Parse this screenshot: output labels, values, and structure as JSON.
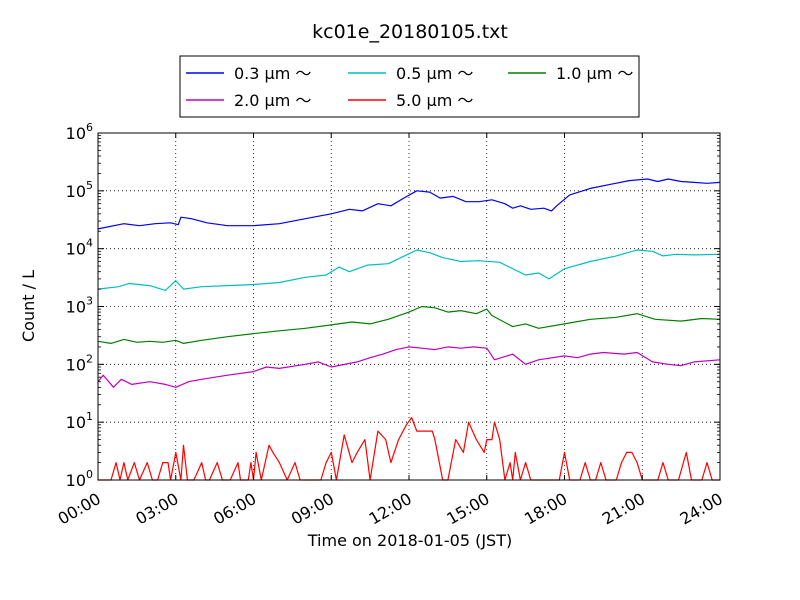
{
  "chart_data": {
    "type": "line",
    "title": "kc01e_20180105.txt",
    "xlabel": "Time on 2018-01-05 (JST)",
    "ylabel": "Count / L",
    "x_ticks": [
      "00:00",
      "03:00",
      "06:00",
      "09:00",
      "12:00",
      "15:00",
      "18:00",
      "21:00",
      "24:00"
    ],
    "y_scale": "log",
    "y_ticks": [
      {
        "base": "10",
        "exp": "0"
      },
      {
        "base": "10",
        "exp": "1"
      },
      {
        "base": "10",
        "exp": "2"
      },
      {
        "base": "10",
        "exp": "3"
      },
      {
        "base": "10",
        "exp": "4"
      },
      {
        "base": "10",
        "exp": "5"
      },
      {
        "base": "10",
        "exp": "6"
      }
    ],
    "xlim_hours": [
      0,
      24
    ],
    "ylim": [
      1,
      1000000
    ],
    "grid": true,
    "legend_position": "top-center",
    "series": [
      {
        "name": "0.3 μm ～",
        "color": "#0000ff",
        "points": [
          [
            0,
            22000
          ],
          [
            1,
            27000
          ],
          [
            1.6,
            25000
          ],
          [
            2.2,
            27000
          ],
          [
            2.8,
            28000
          ],
          [
            3.1,
            26000
          ],
          [
            3.2,
            35000
          ],
          [
            3.6,
            33000
          ],
          [
            4.2,
            28000
          ],
          [
            5,
            25000
          ],
          [
            6,
            25000
          ],
          [
            7,
            27000
          ],
          [
            8,
            33000
          ],
          [
            9,
            40000
          ],
          [
            9.7,
            48000
          ],
          [
            10.2,
            45000
          ],
          [
            10.8,
            60000
          ],
          [
            11.3,
            55000
          ],
          [
            11.8,
            75000
          ],
          [
            12.3,
            100000
          ],
          [
            12.8,
            95000
          ],
          [
            13.2,
            75000
          ],
          [
            13.7,
            80000
          ],
          [
            14.2,
            65000
          ],
          [
            14.7,
            65000
          ],
          [
            15.2,
            70000
          ],
          [
            15.7,
            60000
          ],
          [
            16,
            50000
          ],
          [
            16.3,
            55000
          ],
          [
            16.7,
            48000
          ],
          [
            17.2,
            50000
          ],
          [
            17.5,
            45000
          ],
          [
            17.7,
            55000
          ],
          [
            18.2,
            85000
          ],
          [
            19,
            110000
          ],
          [
            19.8,
            130000
          ],
          [
            20.5,
            150000
          ],
          [
            21.2,
            160000
          ],
          [
            21.6,
            145000
          ],
          [
            22,
            160000
          ],
          [
            22.5,
            145000
          ],
          [
            23,
            140000
          ],
          [
            23.5,
            135000
          ],
          [
            24,
            140000
          ]
        ]
      },
      {
        "name": "0.5 μm ～",
        "color": "#00bfbf",
        "points": [
          [
            0,
            2000
          ],
          [
            0.8,
            2200
          ],
          [
            1.2,
            2500
          ],
          [
            2,
            2300
          ],
          [
            2.6,
            1900
          ],
          [
            3,
            2800
          ],
          [
            3.3,
            2000
          ],
          [
            4,
            2200
          ],
          [
            5,
            2300
          ],
          [
            6,
            2400
          ],
          [
            7,
            2600
          ],
          [
            8,
            3200
          ],
          [
            8.8,
            3500
          ],
          [
            9.3,
            4800
          ],
          [
            9.7,
            4000
          ],
          [
            10.4,
            5200
          ],
          [
            11.2,
            5500
          ],
          [
            12.3,
            9500
          ],
          [
            12.8,
            8500
          ],
          [
            13.3,
            7000
          ],
          [
            14,
            6000
          ],
          [
            14.7,
            6200
          ],
          [
            15.5,
            5800
          ],
          [
            16,
            4500
          ],
          [
            16.5,
            3500
          ],
          [
            17,
            3800
          ],
          [
            17.4,
            3000
          ],
          [
            18,
            4500
          ],
          [
            19,
            6000
          ],
          [
            20,
            7500
          ],
          [
            20.8,
            9500
          ],
          [
            21.4,
            9000
          ],
          [
            21.8,
            7500
          ],
          [
            22.3,
            8000
          ],
          [
            23,
            7800
          ],
          [
            24,
            8000
          ]
        ]
      },
      {
        "name": "1.0 μm ～",
        "color": "#008000",
        "points": [
          [
            0,
            250
          ],
          [
            0.5,
            230
          ],
          [
            1,
            270
          ],
          [
            1.5,
            240
          ],
          [
            2,
            250
          ],
          [
            2.5,
            240
          ],
          [
            3,
            260
          ],
          [
            3.3,
            230
          ],
          [
            4,
            260
          ],
          [
            5,
            300
          ],
          [
            6,
            340
          ],
          [
            7,
            380
          ],
          [
            8,
            420
          ],
          [
            9,
            480
          ],
          [
            9.8,
            540
          ],
          [
            10.5,
            500
          ],
          [
            11.2,
            600
          ],
          [
            12,
            800
          ],
          [
            12.5,
            1000
          ],
          [
            13,
            950
          ],
          [
            13.5,
            800
          ],
          [
            14,
            850
          ],
          [
            14.6,
            750
          ],
          [
            15,
            900
          ],
          [
            15.2,
            700
          ],
          [
            16,
            450
          ],
          [
            16.5,
            500
          ],
          [
            17,
            420
          ],
          [
            18,
            500
          ],
          [
            19,
            600
          ],
          [
            20,
            650
          ],
          [
            20.8,
            750
          ],
          [
            21.5,
            600
          ],
          [
            22.5,
            560
          ],
          [
            23.3,
            620
          ],
          [
            24,
            600
          ]
        ]
      },
      {
        "name": "2.0 μm ～",
        "color": "#bf00bf",
        "points": [
          [
            0,
            50
          ],
          [
            0.2,
            65
          ],
          [
            0.6,
            40
          ],
          [
            0.9,
            55
          ],
          [
            1.3,
            45
          ],
          [
            2,
            50
          ],
          [
            2.6,
            45
          ],
          [
            3,
            40
          ],
          [
            3.5,
            50
          ],
          [
            4,
            55
          ],
          [
            5,
            65
          ],
          [
            6,
            75
          ],
          [
            6.5,
            90
          ],
          [
            7,
            85
          ],
          [
            8,
            100
          ],
          [
            8.5,
            110
          ],
          [
            9,
            90
          ],
          [
            10,
            110
          ],
          [
            10.5,
            130
          ],
          [
            11,
            150
          ],
          [
            11.5,
            180
          ],
          [
            12,
            200
          ],
          [
            12.5,
            190
          ],
          [
            13,
            180
          ],
          [
            13.5,
            200
          ],
          [
            14,
            190
          ],
          [
            14.5,
            200
          ],
          [
            15,
            190
          ],
          [
            15.3,
            120
          ],
          [
            16,
            150
          ],
          [
            16.5,
            100
          ],
          [
            17,
            120
          ],
          [
            18,
            140
          ],
          [
            18.5,
            130
          ],
          [
            19,
            150
          ],
          [
            19.5,
            160
          ],
          [
            20.3,
            150
          ],
          [
            20.8,
            160
          ],
          [
            21.4,
            110
          ],
          [
            22,
            100
          ],
          [
            22.5,
            95
          ],
          [
            23,
            110
          ],
          [
            24,
            120
          ]
        ]
      },
      {
        "name": "5.0 μm ～",
        "color": "#ff0000",
        "points": [
          [
            0,
            1
          ],
          [
            0.5,
            1
          ],
          [
            0.7,
            2
          ],
          [
            0.85,
            1
          ],
          [
            1,
            2
          ],
          [
            1.15,
            1
          ],
          [
            1.4,
            2
          ],
          [
            1.6,
            1
          ],
          [
            1.9,
            2
          ],
          [
            2.1,
            1
          ],
          [
            2.3,
            1
          ],
          [
            2.5,
            2
          ],
          [
            2.7,
            2
          ],
          [
            2.8,
            1
          ],
          [
            3,
            3
          ],
          [
            3.2,
            1
          ],
          [
            3.3,
            4
          ],
          [
            3.45,
            1
          ],
          [
            3.7,
            1
          ],
          [
            4,
            2
          ],
          [
            4.15,
            1
          ],
          [
            4.3,
            1
          ],
          [
            4.6,
            2
          ],
          [
            4.8,
            1
          ],
          [
            5.1,
            1
          ],
          [
            5.4,
            2
          ],
          [
            5.5,
            1
          ],
          [
            5.8,
            1
          ],
          [
            5.9,
            2
          ],
          [
            6,
            1
          ],
          [
            6.1,
            3
          ],
          [
            6.3,
            1
          ],
          [
            6.6,
            4
          ],
          [
            6.75,
            3
          ],
          [
            7,
            2
          ],
          [
            7.3,
            1
          ],
          [
            7.6,
            2
          ],
          [
            7.8,
            1
          ],
          [
            8.1,
            1
          ],
          [
            8.4,
            1
          ],
          [
            8.6,
            1
          ],
          [
            8.8,
            2
          ],
          [
            9,
            3
          ],
          [
            9.2,
            1
          ],
          [
            9.5,
            6
          ],
          [
            9.8,
            2
          ],
          [
            10,
            3
          ],
          [
            10.3,
            5
          ],
          [
            10.5,
            1
          ],
          [
            10.8,
            7
          ],
          [
            11.1,
            5
          ],
          [
            11.3,
            2
          ],
          [
            11.6,
            5
          ],
          [
            11.9,
            9
          ],
          [
            12.1,
            12
          ],
          [
            12.3,
            7
          ],
          [
            12.6,
            7
          ],
          [
            12.9,
            7
          ],
          [
            13,
            5
          ],
          [
            13.3,
            1
          ],
          [
            13.5,
            1
          ],
          [
            13.8,
            5
          ],
          [
            14.1,
            3
          ],
          [
            14.3,
            10
          ],
          [
            14.6,
            5
          ],
          [
            14.9,
            3
          ],
          [
            15,
            5
          ],
          [
            15.2,
            5
          ],
          [
            15.3,
            10
          ],
          [
            15.5,
            5
          ],
          [
            15.7,
            1
          ],
          [
            15.9,
            2
          ],
          [
            16,
            1
          ],
          [
            16.1,
            3
          ],
          [
            16.3,
            1
          ],
          [
            16.5,
            2
          ],
          [
            16.7,
            1
          ],
          [
            16.9,
            1
          ],
          [
            17.1,
            1
          ],
          [
            17.3,
            1
          ],
          [
            17.6,
            1
          ],
          [
            17.8,
            1
          ],
          [
            18,
            3
          ],
          [
            18.2,
            1
          ],
          [
            18.4,
            1
          ],
          [
            18.6,
            1
          ],
          [
            18.8,
            2
          ],
          [
            19,
            1
          ],
          [
            19.2,
            1
          ],
          [
            19.4,
            2
          ],
          [
            19.6,
            1
          ],
          [
            19.8,
            1
          ],
          [
            20,
            1
          ],
          [
            20.2,
            2
          ],
          [
            20.4,
            3
          ],
          [
            20.6,
            3
          ],
          [
            20.8,
            2
          ],
          [
            21,
            1
          ],
          [
            21.2,
            1
          ],
          [
            21.4,
            1
          ],
          [
            21.6,
            1
          ],
          [
            21.8,
            2
          ],
          [
            22,
            1
          ],
          [
            22.2,
            1
          ],
          [
            22.4,
            1
          ],
          [
            22.7,
            3
          ],
          [
            22.9,
            1
          ],
          [
            23.1,
            1
          ],
          [
            23.3,
            1
          ],
          [
            23.5,
            2
          ],
          [
            23.7,
            1
          ],
          [
            23.9,
            1
          ],
          [
            24,
            1
          ]
        ]
      }
    ]
  }
}
